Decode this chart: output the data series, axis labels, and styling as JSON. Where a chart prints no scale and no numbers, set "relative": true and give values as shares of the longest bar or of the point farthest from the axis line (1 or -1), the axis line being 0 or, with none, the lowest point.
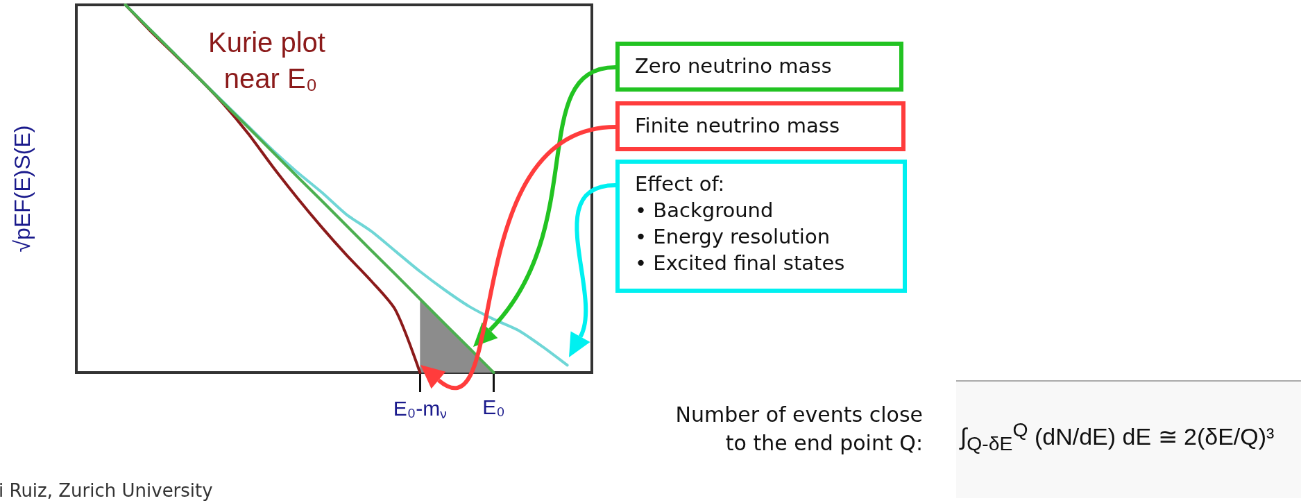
{
  "chart_data": {
    "type": "line",
    "title": "Kurie plot near E₀",
    "ylabel": "√pEF(E)S(E)",
    "relative": true,
    "categories": [
      null,
      null,
      null,
      null,
      null,
      null,
      null,
      null,
      null,
      null,
      null,
      null,
      null,
      null,
      "E₀-m$_{ν}$",
      null,
      null,
      "E₀",
      null,
      null,
      null,
      null
    ],
    "series": [
      {
        "color": "#6fd6d6",
        "values": [
          null,
          null,
          1,
          0.933,
          0.867,
          0.8,
          0.735,
          0.67,
          0.605,
          0.545,
          0.49,
          0.43,
          0.385,
          0.33,
          0.275,
          0.225,
          0.18,
          0.145,
          0.115,
          0.07,
          0.02,
          null
        ]
      },
      {
        "color": "#8b1a1a",
        "values": [
          null,
          null,
          1,
          0.93,
          0.865,
          0.8,
          0.73,
          0.65,
          0.56,
          0.475,
          0.395,
          0.32,
          0.25,
          0.17,
          0,
          null,
          null,
          null,
          null,
          null,
          null,
          null
        ]
      },
      {
        "color": "#4caf50",
        "values": [
          null,
          null,
          1,
          0.933,
          0.867,
          0.8,
          0.733,
          0.667,
          0.6,
          0.533,
          0.467,
          0.4,
          0.333,
          0.267,
          0.2,
          0.133,
          0.067,
          0,
          null,
          null,
          null,
          null
        ]
      },
      {
        "type": "area",
        "color": "#8c8c8c",
        "values": [
          null,
          null,
          null,
          null,
          null,
          null,
          null,
          null,
          null,
          null,
          null,
          null,
          null,
          null,
          0.2,
          0.133,
          0.067,
          0,
          null,
          null,
          null,
          null
        ]
      }
    ],
    "annotations": [
      "Zero neutrino mass",
      "Finite neutrino mass",
      "Effect of:\n• Background\n• Energy resolution\n• Excited final states",
      "Number of events close\nto the end point Q:",
      "∫$_{Q-δE}$$^{Q}$ (dN/dE) dE ≅ 2(δE/Q)³",
      "i Ruiz, Zurich University"
    ],
    "grid": false,
    "marker": "none",
    "line_style": "solid"
  }
}
